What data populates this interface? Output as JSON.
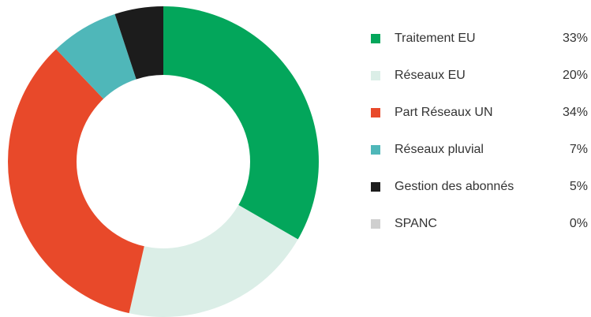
{
  "chart_data": {
    "type": "donut",
    "categories": [
      "Traitement EU",
      "Réseaux EU",
      "Part Réseaux UN",
      "Réseaux pluvial",
      "Gestion des abonnés",
      "SPANC"
    ],
    "values": [
      33,
      20,
      34,
      7,
      5,
      0
    ],
    "value_labels": [
      "33%",
      "20%",
      "34%",
      "7%",
      "5%",
      "0%"
    ],
    "colors": [
      "#03a65b",
      "#dbeee7",
      "#e8492a",
      "#4fb7b9",
      "#1c1c1c",
      "#cfcfcf"
    ],
    "legend": "right"
  }
}
